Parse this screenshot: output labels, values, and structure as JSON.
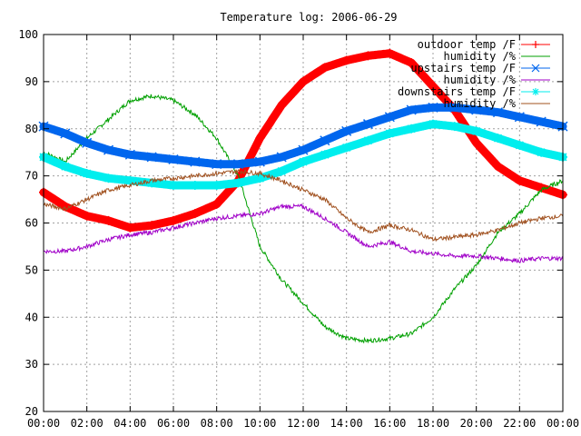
{
  "chart_data": {
    "type": "line",
    "title": "Temperature log: 2006-06-29",
    "xlabel": "",
    "ylabel": "",
    "x_tick_labels": [
      "00:00",
      "02:00",
      "04:00",
      "06:00",
      "08:00",
      "10:00",
      "12:00",
      "14:00",
      "16:00",
      "18:00",
      "20:00",
      "22:00",
      "00:00"
    ],
    "xlim_hours": [
      0,
      24
    ],
    "ylim": [
      20,
      100
    ],
    "y_ticks": [
      20,
      30,
      40,
      50,
      60,
      70,
      80,
      90,
      100
    ],
    "grid": true,
    "legend_position": "top-right",
    "series": [
      {
        "name": "outdoor temp /F",
        "color": "#ff0000",
        "marker": "plus",
        "style": "points",
        "x": [
          0,
          1,
          2,
          3,
          4,
          5,
          6,
          7,
          8,
          9,
          10,
          11,
          12,
          13,
          14,
          15,
          16,
          17,
          18,
          19,
          20,
          21,
          22,
          23,
          24
        ],
        "y": [
          66.5,
          63.5,
          61.5,
          60.5,
          59,
          59.5,
          60.5,
          62,
          64,
          69,
          78,
          85,
          90,
          93,
          94.5,
          95.5,
          96,
          94,
          89,
          84,
          77,
          72,
          69,
          67.5,
          66
        ]
      },
      {
        "name": "humidity /%",
        "color": "#00a000",
        "style": "line",
        "x": [
          0,
          1,
          2,
          3,
          4,
          5,
          6,
          7,
          8,
          9,
          10,
          11,
          12,
          13,
          14,
          15,
          16,
          17,
          18,
          19,
          20,
          21,
          22,
          23,
          24
        ],
        "y": [
          75,
          73,
          78,
          82,
          86,
          87,
          86,
          83,
          78,
          70,
          55,
          48,
          43,
          38,
          35.5,
          35,
          35.5,
          36.5,
          40,
          46,
          51,
          58,
          62,
          67,
          69
        ]
      },
      {
        "name": "upstairs temp /F",
        "color": "#0066ee",
        "marker": "cross",
        "style": "points",
        "x": [
          0,
          1,
          2,
          3,
          4,
          5,
          6,
          7,
          8,
          9,
          10,
          11,
          12,
          13,
          14,
          15,
          16,
          17,
          18,
          19,
          20,
          21,
          22,
          23,
          24
        ],
        "y": [
          80.5,
          79,
          77,
          75.5,
          74.5,
          74,
          73.5,
          73,
          72.5,
          72.5,
          73,
          74,
          75.5,
          77.5,
          79.5,
          81,
          82.5,
          84,
          84.5,
          84.5,
          84,
          83.5,
          82.5,
          81.5,
          80.5
        ]
      },
      {
        "name": "humidity /%",
        "color": "#a000c8",
        "style": "line",
        "x": [
          0,
          1,
          2,
          3,
          4,
          5,
          6,
          7,
          8,
          9,
          10,
          11,
          12,
          13,
          14,
          15,
          16,
          17,
          18,
          19,
          20,
          21,
          22,
          23,
          24
        ],
        "y": [
          54,
          54,
          55,
          56.5,
          57.5,
          58,
          59,
          60,
          61,
          61.5,
          62,
          63.5,
          63.5,
          61,
          58,
          55,
          56,
          54,
          53.5,
          53,
          53,
          52.5,
          52,
          52.5,
          52.5
        ]
      },
      {
        "name": "downstairs temp /F",
        "color": "#00eeee",
        "marker": "star",
        "style": "points",
        "x": [
          0,
          1,
          2,
          3,
          4,
          5,
          6,
          7,
          8,
          9,
          10,
          11,
          12,
          13,
          14,
          15,
          16,
          17,
          18,
          19,
          20,
          21,
          22,
          23,
          24
        ],
        "y": [
          74,
          72,
          70.5,
          69.5,
          69,
          68.5,
          68,
          68,
          68,
          68.5,
          69.5,
          71,
          73,
          74.5,
          76,
          77.5,
          79,
          80,
          81,
          80.5,
          79.5,
          78,
          76.5,
          75,
          74
        ]
      },
      {
        "name": "humidity /%",
        "color": "#a0501e",
        "style": "line",
        "x": [
          0,
          1,
          2,
          3,
          4,
          5,
          6,
          7,
          8,
          9,
          10,
          11,
          12,
          13,
          14,
          15,
          16,
          17,
          18,
          19,
          20,
          21,
          22,
          23,
          24
        ],
        "y": [
          64,
          63,
          65,
          67,
          68,
          69,
          69.5,
          70,
          70.5,
          71,
          70.5,
          69,
          67,
          65,
          61,
          58,
          59.5,
          58.5,
          56.5,
          57,
          57.5,
          58.5,
          60,
          61,
          61.5
        ]
      }
    ]
  }
}
